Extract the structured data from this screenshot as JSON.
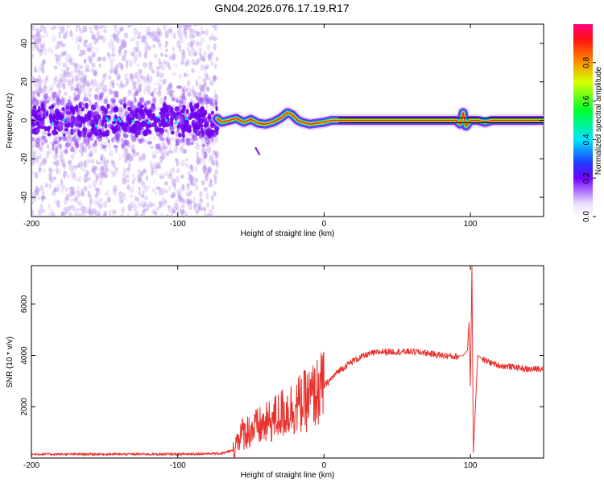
{
  "title": "GN04.2026.076.17.19.R17",
  "chart_data": [
    {
      "type": "heatmap",
      "title": "GN04.2026.076.17.19.R17",
      "xlabel": "Height of straight line (km)",
      "ylabel": "Frequency (Hz)",
      "xlim": [
        -200,
        150
      ],
      "ylim": [
        -50,
        50
      ],
      "x_ticks": [
        "-200",
        "-100",
        "0",
        "100"
      ],
      "y_ticks": [
        "-40",
        "-20",
        "0",
        "20",
        "40"
      ],
      "colorbar": {
        "label": "Normalized spectral amplitude",
        "range": [
          0,
          1
        ],
        "ticks": [
          "0.0",
          "0.2",
          "0.4",
          "0.6",
          "0.8"
        ]
      },
      "noise_region_x": [
        -200,
        -73
      ],
      "ridge": {
        "x": [
          -73,
          -70,
          -65,
          -60,
          -55,
          -50,
          -45,
          -40,
          -35,
          -30,
          -25,
          -22,
          -18,
          -15,
          -10,
          -5,
          0,
          5,
          10,
          20,
          40,
          60,
          80,
          90,
          93,
          95,
          97,
          100,
          105,
          110,
          115,
          120,
          150
        ],
        "f": [
          1,
          -1,
          0,
          1,
          -1,
          0.5,
          -1.5,
          -2,
          -1,
          1,
          4,
          3,
          0,
          -1,
          -2,
          -1.5,
          -1,
          0,
          0,
          0,
          0,
          0,
          0,
          0,
          -2,
          4,
          -3,
          0,
          0,
          -1,
          0,
          0,
          0
        ]
      }
    },
    {
      "type": "line",
      "xlabel": "Height of straight line (km)",
      "ylabel": "SNR (10 * v/v)",
      "xlim": [
        -200,
        150
      ],
      "ylim": [
        0,
        7500
      ],
      "x_ticks": [
        "-200",
        "-100",
        "0",
        "100"
      ],
      "y_ticks": [
        "2000",
        "4000",
        "6000"
      ],
      "color": "#e8322d",
      "series": [
        {
          "name": "SNR",
          "x": [
            -200,
            -150,
            -100,
            -70,
            -62,
            -58,
            -50,
            -40,
            -30,
            -20,
            -10,
            0,
            10,
            20,
            30,
            40,
            50,
            60,
            70,
            80,
            90,
            95,
            98,
            99,
            100,
            101,
            102,
            105,
            110,
            120,
            130,
            140,
            150
          ],
          "y": [
            150,
            150,
            150,
            180,
            300,
            900,
            1100,
            1300,
            1700,
            2000,
            2300,
            2800,
            3400,
            3800,
            4050,
            4150,
            4150,
            4150,
            4100,
            4000,
            3950,
            4000,
            4200,
            5300,
            2800,
            7500,
            200,
            4000,
            3800,
            3600,
            3550,
            3450,
            3500
          ]
        }
      ]
    }
  ]
}
